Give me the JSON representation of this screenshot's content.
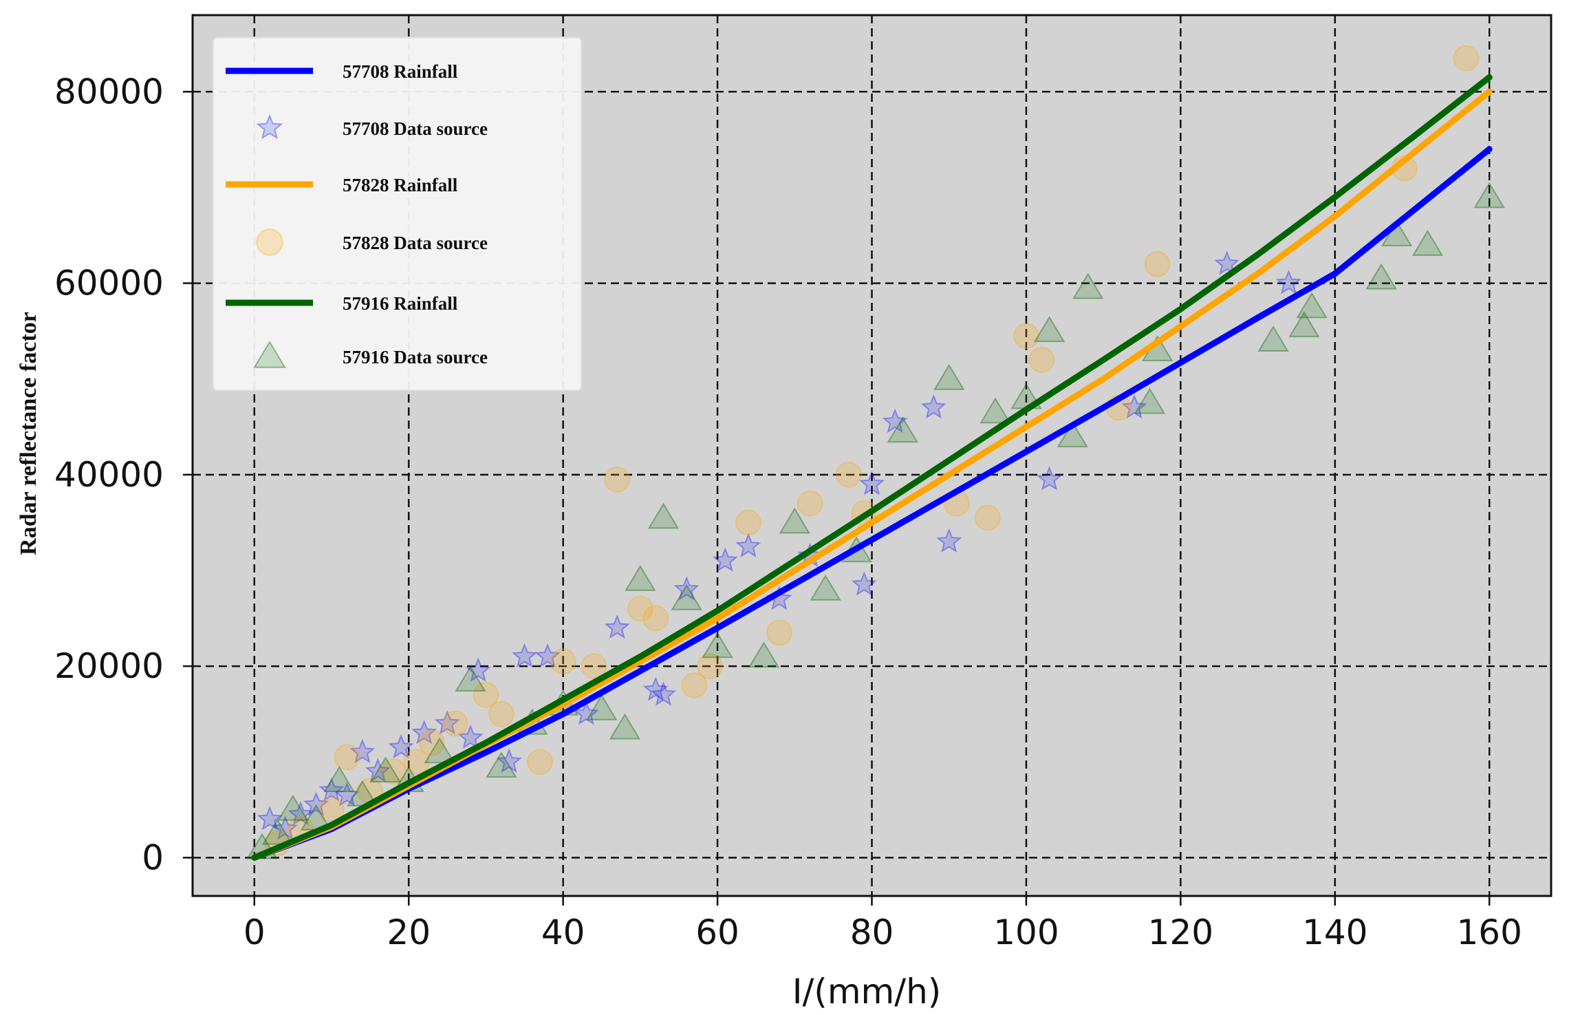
{
  "chart_data": {
    "type": "scatter",
    "xlabel": "I/(mm/h)",
    "ylabel": "Radar reflectance factor",
    "xlim": [
      -8,
      168
    ],
    "ylim": [
      -4000,
      88000
    ],
    "xticks": [
      0,
      20,
      40,
      60,
      80,
      100,
      120,
      140,
      160
    ],
    "yticks": [
      0,
      20000,
      40000,
      60000,
      80000
    ],
    "x_tick_labels": [
      "0",
      "20",
      "40",
      "60",
      "80",
      "100",
      "120",
      "140",
      "160"
    ],
    "y_tick_labels": [
      "0",
      "20000",
      "40000",
      "60000",
      "80000"
    ],
    "grid": true,
    "grid_style": "dashed",
    "background": "#d3d3d3",
    "legend_position": "upper-left",
    "legend": [
      {
        "label": "57708 Rainfall",
        "kind": "line",
        "color": "#0000ff"
      },
      {
        "label": "57708 Data source",
        "kind": "marker",
        "marker": "star",
        "color": "#0000ff"
      },
      {
        "label": "57828 Rainfall",
        "kind": "line",
        "color": "#ffa500"
      },
      {
        "label": "57828 Data source",
        "kind": "marker",
        "marker": "circle",
        "color": "#ffa500"
      },
      {
        "label": "57916 Rainfall",
        "kind": "line",
        "color": "#006400"
      },
      {
        "label": "57916 Data source",
        "kind": "marker",
        "marker": "triangle",
        "color": "#006400"
      }
    ],
    "series": [
      {
        "name": "57708 Rainfall",
        "kind": "line",
        "color": "#0000ff",
        "x": [
          0,
          10,
          20,
          30,
          40,
          50,
          60,
          70,
          80,
          90,
          100,
          110,
          120,
          130,
          140,
          150,
          160
        ],
        "y": [
          0,
          3000,
          7200,
          11000,
          15000,
          19500,
          24000,
          28600,
          33200,
          37800,
          42400,
          47000,
          51700,
          56400,
          61000,
          67500,
          74000
        ]
      },
      {
        "name": "57828 Rainfall",
        "kind": "line",
        "color": "#ffa500",
        "x": [
          0,
          10,
          20,
          30,
          40,
          50,
          60,
          70,
          80,
          90,
          100,
          110,
          120,
          130,
          140,
          150,
          160
        ],
        "y": [
          0,
          3200,
          7500,
          11800,
          16000,
          20500,
          25000,
          30000,
          35000,
          40000,
          45000,
          50000,
          55500,
          61000,
          67000,
          73500,
          80000
        ]
      },
      {
        "name": "57916 Rainfall",
        "kind": "line",
        "color": "#006400",
        "x": [
          0,
          10,
          20,
          30,
          40,
          50,
          60,
          70,
          80,
          90,
          100,
          110,
          120,
          130,
          140,
          150,
          160
        ],
        "y": [
          0,
          3400,
          7800,
          12000,
          16500,
          21000,
          25800,
          31000,
          36200,
          41500,
          46800,
          52000,
          57300,
          63000,
          69000,
          75200,
          81500
        ]
      },
      {
        "name": "57708 Data source",
        "kind": "scatter",
        "marker": "star",
        "color": "#0000ff",
        "x": [
          2,
          4,
          6,
          8,
          10,
          12,
          14,
          16,
          19,
          22,
          25,
          28,
          29,
          33,
          35,
          38,
          43,
          47,
          52,
          53,
          56,
          61,
          64,
          68,
          72,
          79,
          80,
          83,
          88,
          90,
          103,
          114,
          126,
          134
        ],
        "y": [
          4000,
          3000,
          4500,
          5500,
          7000,
          6500,
          11000,
          9000,
          11500,
          13000,
          14000,
          12500,
          19500,
          10000,
          21000,
          21000,
          15000,
          24000,
          17500,
          17000,
          28000,
          31000,
          32500,
          27000,
          31500,
          28500,
          39000,
          45500,
          47000,
          33000,
          39500,
          47000,
          62000,
          60000
        ]
      },
      {
        "name": "57828 Data source",
        "kind": "scatter",
        "marker": "circle",
        "color": "#ffa500",
        "x": [
          3,
          6,
          10,
          12,
          15,
          18,
          21,
          23,
          26,
          30,
          32,
          37,
          40,
          44,
          47,
          50,
          52,
          57,
          59,
          64,
          68,
          72,
          77,
          79,
          91,
          95,
          100,
          102,
          112,
          117,
          149,
          157
        ],
        "y": [
          1500,
          3000,
          5000,
          10500,
          7000,
          9000,
          10000,
          12000,
          14000,
          17000,
          15000,
          10000,
          20500,
          20000,
          39500,
          26000,
          25000,
          18000,
          20000,
          35000,
          23500,
          37000,
          40000,
          36000,
          37000,
          35500,
          54500,
          52000,
          47000,
          62000,
          72000,
          83500
        ]
      },
      {
        "name": "57916 Data source",
        "kind": "scatter",
        "marker": "triangle",
        "color": "#006400",
        "x": [
          1,
          3,
          5,
          8,
          11,
          14,
          17,
          20,
          24,
          28,
          32,
          36,
          40,
          45,
          48,
          50,
          53,
          56,
          60,
          66,
          70,
          74,
          78,
          84,
          90,
          96,
          100,
          103,
          106,
          108,
          116,
          117,
          132,
          136,
          137,
          146,
          148,
          152,
          160
        ],
        "y": [
          1000,
          2500,
          5000,
          4000,
          8000,
          6500,
          9000,
          8000,
          11000,
          18500,
          9500,
          14000,
          16000,
          15500,
          13500,
          29000,
          35500,
          27000,
          22000,
          21000,
          35000,
          28000,
          32000,
          44500,
          50000,
          46500,
          48000,
          55000,
          44000,
          59500,
          47500,
          53000,
          54000,
          55500,
          57500,
          60500,
          65000,
          64000,
          69000
        ]
      }
    ]
  }
}
